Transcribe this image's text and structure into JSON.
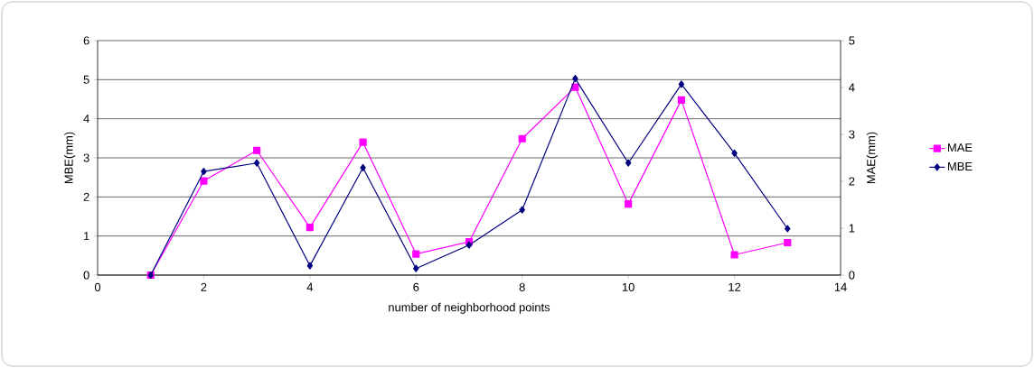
{
  "chart_data": {
    "type": "line",
    "xlabel": "number of neighborhood points",
    "ylabel": "MBE(mm)",
    "y2label": "MAE(mm)",
    "x": [
      1,
      2,
      3,
      4,
      5,
      6,
      7,
      8,
      9,
      10,
      11,
      12,
      13
    ],
    "series": [
      {
        "name": "MAE",
        "color": "#ff00ff",
        "marker": "square",
        "axis": "y",
        "values": [
          0,
          2.41,
          3.19,
          1.22,
          3.4,
          0.54,
          0.85,
          3.49,
          4.81,
          1.82,
          4.48,
          0.52,
          0.83
        ]
      },
      {
        "name": "MBE",
        "color": "#000080",
        "marker": "diamond",
        "axis": "y2",
        "values": [
          0,
          2.21,
          2.39,
          0.2,
          2.29,
          0.14,
          0.64,
          1.39,
          4.19,
          2.39,
          4.07,
          2.6,
          0.99
        ]
      }
    ],
    "xlim": [
      0,
      14
    ],
    "xticks": [
      0,
      2,
      4,
      6,
      8,
      10,
      12,
      14
    ],
    "ylim": [
      0,
      6
    ],
    "yticks": [
      0,
      1,
      2,
      3,
      4,
      5,
      6
    ],
    "y2lim": [
      0,
      5
    ],
    "y2ticks": [
      0,
      1,
      2,
      3,
      4,
      5
    ],
    "grid": "y",
    "legend": "right"
  }
}
